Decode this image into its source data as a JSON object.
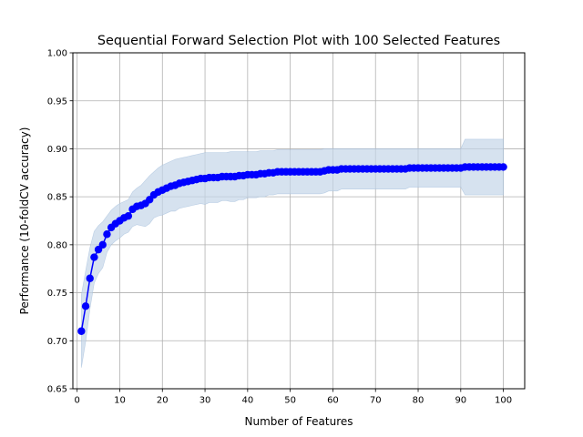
{
  "chart_data": {
    "type": "line",
    "title": "Sequential Forward Selection Plot with 100 Selected Features",
    "xlabel": "Number of Features",
    "ylabel": "Performance (10-foldCV accuracy)",
    "xlim": [
      -1,
      105
    ],
    "ylim": [
      0.65,
      1.0
    ],
    "xticks": [
      0,
      10,
      20,
      30,
      40,
      50,
      60,
      70,
      80,
      90,
      100
    ],
    "yticks": [
      0.65,
      0.7,
      0.75,
      0.8,
      0.85,
      0.9,
      0.95,
      1.0
    ],
    "xtick_labels": [
      "0",
      "10",
      "20",
      "30",
      "40",
      "50",
      "60",
      "70",
      "80",
      "90",
      "100"
    ],
    "ytick_labels": [
      "0.65",
      "0.70",
      "0.75",
      "0.80",
      "0.85",
      "0.90",
      "0.95",
      "1.00"
    ],
    "grid": true,
    "colors": {
      "line": "#0000ff",
      "band": "#c5d6e8",
      "band_edge": "#9db9d8",
      "grid": "#b0b0b0"
    },
    "series": [
      {
        "x": [
          1,
          2,
          3,
          4,
          5,
          6,
          7,
          8,
          9,
          10,
          11,
          12,
          13,
          14,
          15,
          16,
          17,
          18,
          19,
          20,
          21,
          22,
          23,
          24,
          25,
          26,
          27,
          28,
          29,
          30,
          31,
          32,
          33,
          34,
          35,
          36,
          37,
          38,
          39,
          40,
          41,
          42,
          43,
          44,
          45,
          46,
          47,
          48,
          49,
          50,
          51,
          52,
          53,
          54,
          55,
          56,
          57,
          58,
          59,
          60,
          61,
          62,
          63,
          64,
          65,
          66,
          67,
          68,
          69,
          70,
          71,
          72,
          73,
          74,
          75,
          76,
          77,
          78,
          79,
          80,
          81,
          82,
          83,
          84,
          85,
          86,
          87,
          88,
          89,
          90,
          91,
          92,
          93,
          94,
          95,
          96,
          97,
          98,
          99,
          100
        ],
        "y": [
          0.71,
          0.736,
          0.765,
          0.787,
          0.795,
          0.8,
          0.811,
          0.818,
          0.822,
          0.825,
          0.828,
          0.83,
          0.837,
          0.84,
          0.841,
          0.843,
          0.847,
          0.852,
          0.855,
          0.857,
          0.859,
          0.861,
          0.862,
          0.864,
          0.865,
          0.866,
          0.867,
          0.868,
          0.869,
          0.869,
          0.87,
          0.87,
          0.87,
          0.871,
          0.871,
          0.871,
          0.871,
          0.872,
          0.872,
          0.873,
          0.873,
          0.873,
          0.874,
          0.874,
          0.875,
          0.875,
          0.876,
          0.876,
          0.876,
          0.876,
          0.876,
          0.876,
          0.876,
          0.876,
          0.876,
          0.876,
          0.876,
          0.877,
          0.878,
          0.878,
          0.878,
          0.879,
          0.879,
          0.879,
          0.879,
          0.879,
          0.879,
          0.879,
          0.879,
          0.879,
          0.879,
          0.879,
          0.879,
          0.879,
          0.879,
          0.879,
          0.879,
          0.88,
          0.88,
          0.88,
          0.88,
          0.88,
          0.88,
          0.88,
          0.88,
          0.88,
          0.88,
          0.88,
          0.88,
          0.88,
          0.881,
          0.881,
          0.881,
          0.881,
          0.881,
          0.881,
          0.881,
          0.881,
          0.881,
          0.881
        ],
        "band_upper": [
          0.748,
          0.773,
          0.797,
          0.814,
          0.82,
          0.824,
          0.83,
          0.836,
          0.84,
          0.843,
          0.845,
          0.847,
          0.855,
          0.859,
          0.862,
          0.867,
          0.872,
          0.876,
          0.88,
          0.883,
          0.885,
          0.887,
          0.889,
          0.89,
          0.891,
          0.892,
          0.893,
          0.894,
          0.895,
          0.896,
          0.896,
          0.896,
          0.896,
          0.896,
          0.896,
          0.897,
          0.897,
          0.897,
          0.897,
          0.897,
          0.897,
          0.897,
          0.898,
          0.898,
          0.898,
          0.898,
          0.899,
          0.899,
          0.899,
          0.899,
          0.899,
          0.899,
          0.899,
          0.899,
          0.899,
          0.899,
          0.899,
          0.9,
          0.9,
          0.9,
          0.9,
          0.9,
          0.9,
          0.9,
          0.9,
          0.9,
          0.9,
          0.9,
          0.9,
          0.9,
          0.9,
          0.9,
          0.9,
          0.9,
          0.9,
          0.9,
          0.9,
          0.9,
          0.9,
          0.9,
          0.9,
          0.9,
          0.9,
          0.9,
          0.9,
          0.9,
          0.9,
          0.9,
          0.9,
          0.9,
          0.91,
          0.91,
          0.91,
          0.91,
          0.91,
          0.91,
          0.91,
          0.91,
          0.91,
          0.91
        ],
        "band_lower": [
          0.672,
          0.699,
          0.733,
          0.76,
          0.77,
          0.776,
          0.792,
          0.8,
          0.804,
          0.807,
          0.811,
          0.813,
          0.819,
          0.821,
          0.82,
          0.819,
          0.822,
          0.828,
          0.83,
          0.831,
          0.833,
          0.835,
          0.835,
          0.838,
          0.839,
          0.84,
          0.841,
          0.842,
          0.843,
          0.842,
          0.844,
          0.844,
          0.844,
          0.846,
          0.846,
          0.845,
          0.845,
          0.847,
          0.847,
          0.849,
          0.849,
          0.849,
          0.85,
          0.85,
          0.852,
          0.852,
          0.853,
          0.853,
          0.853,
          0.853,
          0.853,
          0.853,
          0.853,
          0.853,
          0.853,
          0.853,
          0.853,
          0.854,
          0.856,
          0.856,
          0.856,
          0.858,
          0.858,
          0.858,
          0.858,
          0.858,
          0.858,
          0.858,
          0.858,
          0.858,
          0.858,
          0.858,
          0.858,
          0.858,
          0.858,
          0.858,
          0.858,
          0.86,
          0.86,
          0.86,
          0.86,
          0.86,
          0.86,
          0.86,
          0.86,
          0.86,
          0.86,
          0.86,
          0.86,
          0.86,
          0.852,
          0.852,
          0.852,
          0.852,
          0.852,
          0.852,
          0.852,
          0.852,
          0.852,
          0.852
        ]
      }
    ]
  }
}
